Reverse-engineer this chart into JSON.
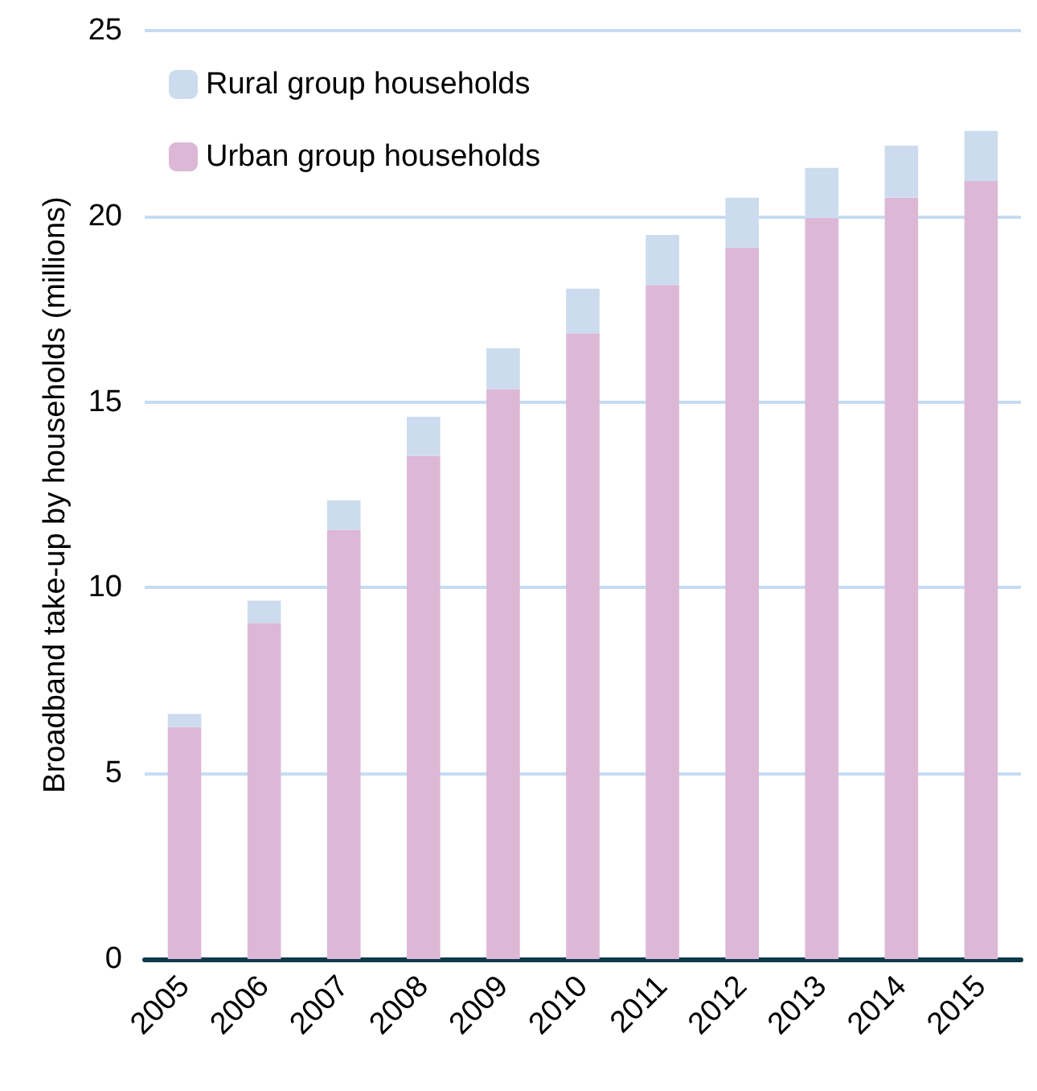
{
  "chart_data": {
    "type": "bar",
    "stacked": true,
    "ylabel": "Broadband take-up by households (millions)",
    "categories": [
      "2005",
      "2006",
      "2007",
      "2008",
      "2009",
      "2010",
      "2011",
      "2012",
      "2013",
      "2014",
      "2015"
    ],
    "series": [
      {
        "name": "Urban group households",
        "color": "#dcb8d6",
        "values": [
          6.25,
          9.05,
          11.55,
          13.55,
          15.35,
          16.85,
          18.15,
          19.15,
          19.95,
          20.5,
          20.95
        ]
      },
      {
        "name": "Rural group households",
        "color": "#ccdcee",
        "values": [
          0.35,
          0.6,
          0.8,
          1.05,
          1.1,
          1.2,
          1.35,
          1.35,
          1.35,
          1.4,
          1.35
        ]
      }
    ],
    "ylim": [
      0,
      25
    ],
    "yticks": [
      0,
      5,
      10,
      15,
      20,
      25
    ],
    "grid": "y",
    "legend": "top left"
  }
}
